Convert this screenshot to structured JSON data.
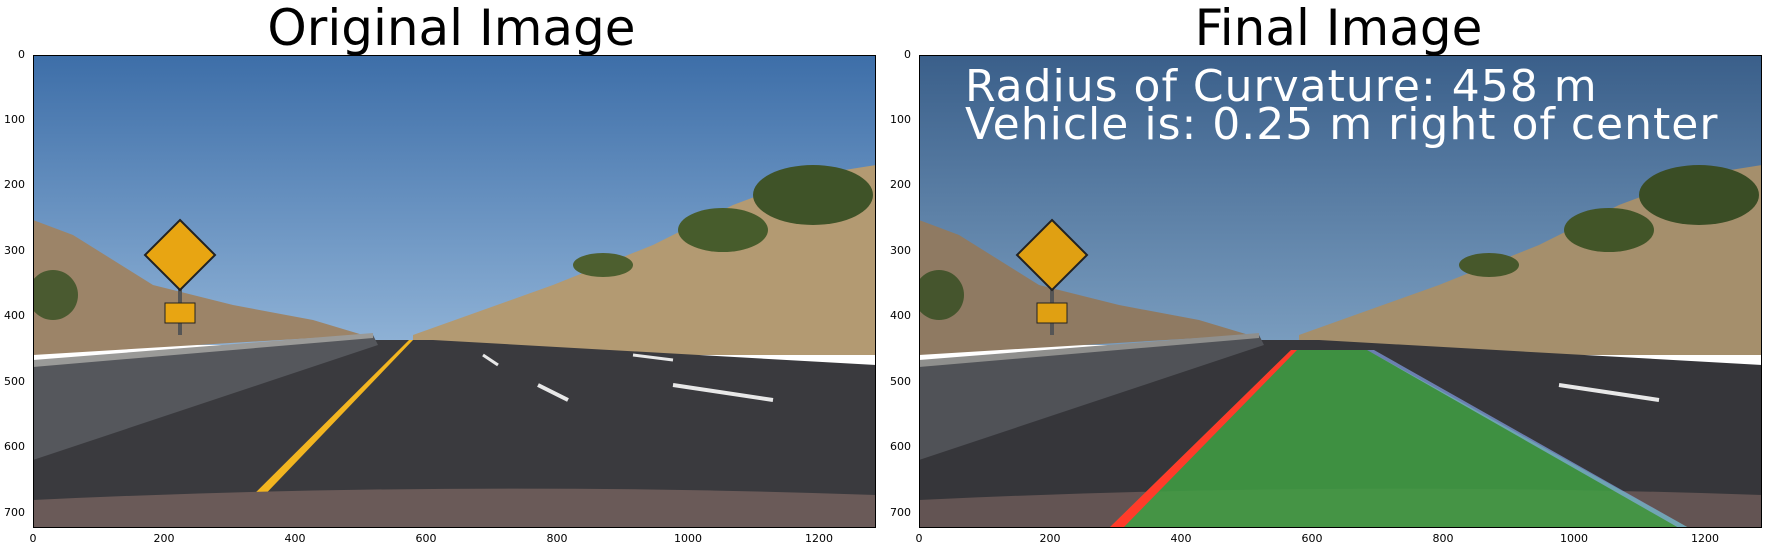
{
  "panels": [
    {
      "title": "Original Image",
      "y_ticks": [
        "0",
        "100",
        "200",
        "300",
        "400",
        "500",
        "600",
        "700"
      ],
      "x_ticks": [
        "0",
        "200",
        "400",
        "600",
        "800",
        "1000",
        "1200"
      ]
    },
    {
      "title": "Final Image",
      "y_ticks": [
        "0",
        "100",
        "200",
        "300",
        "400",
        "500",
        "600",
        "700"
      ],
      "x_ticks": [
        "0",
        "200",
        "400",
        "600",
        "800",
        "1000",
        "1200"
      ],
      "overlay": {
        "radius_line": "Radius of Curvature: 458 m",
        "offset_line": "Vehicle is: 0.25 m right of center"
      }
    }
  ],
  "colors": {
    "sky_top": "#3d6ea8",
    "sky_bottom": "#7fa6cc",
    "road": "#3a3a3e",
    "hills": "#a89070",
    "trees": "#4a5a30",
    "yellow_line": "#f2b520",
    "lane_fill": "#3fa043",
    "left_line": "#ff3b2a",
    "sign": "#e8a512"
  }
}
